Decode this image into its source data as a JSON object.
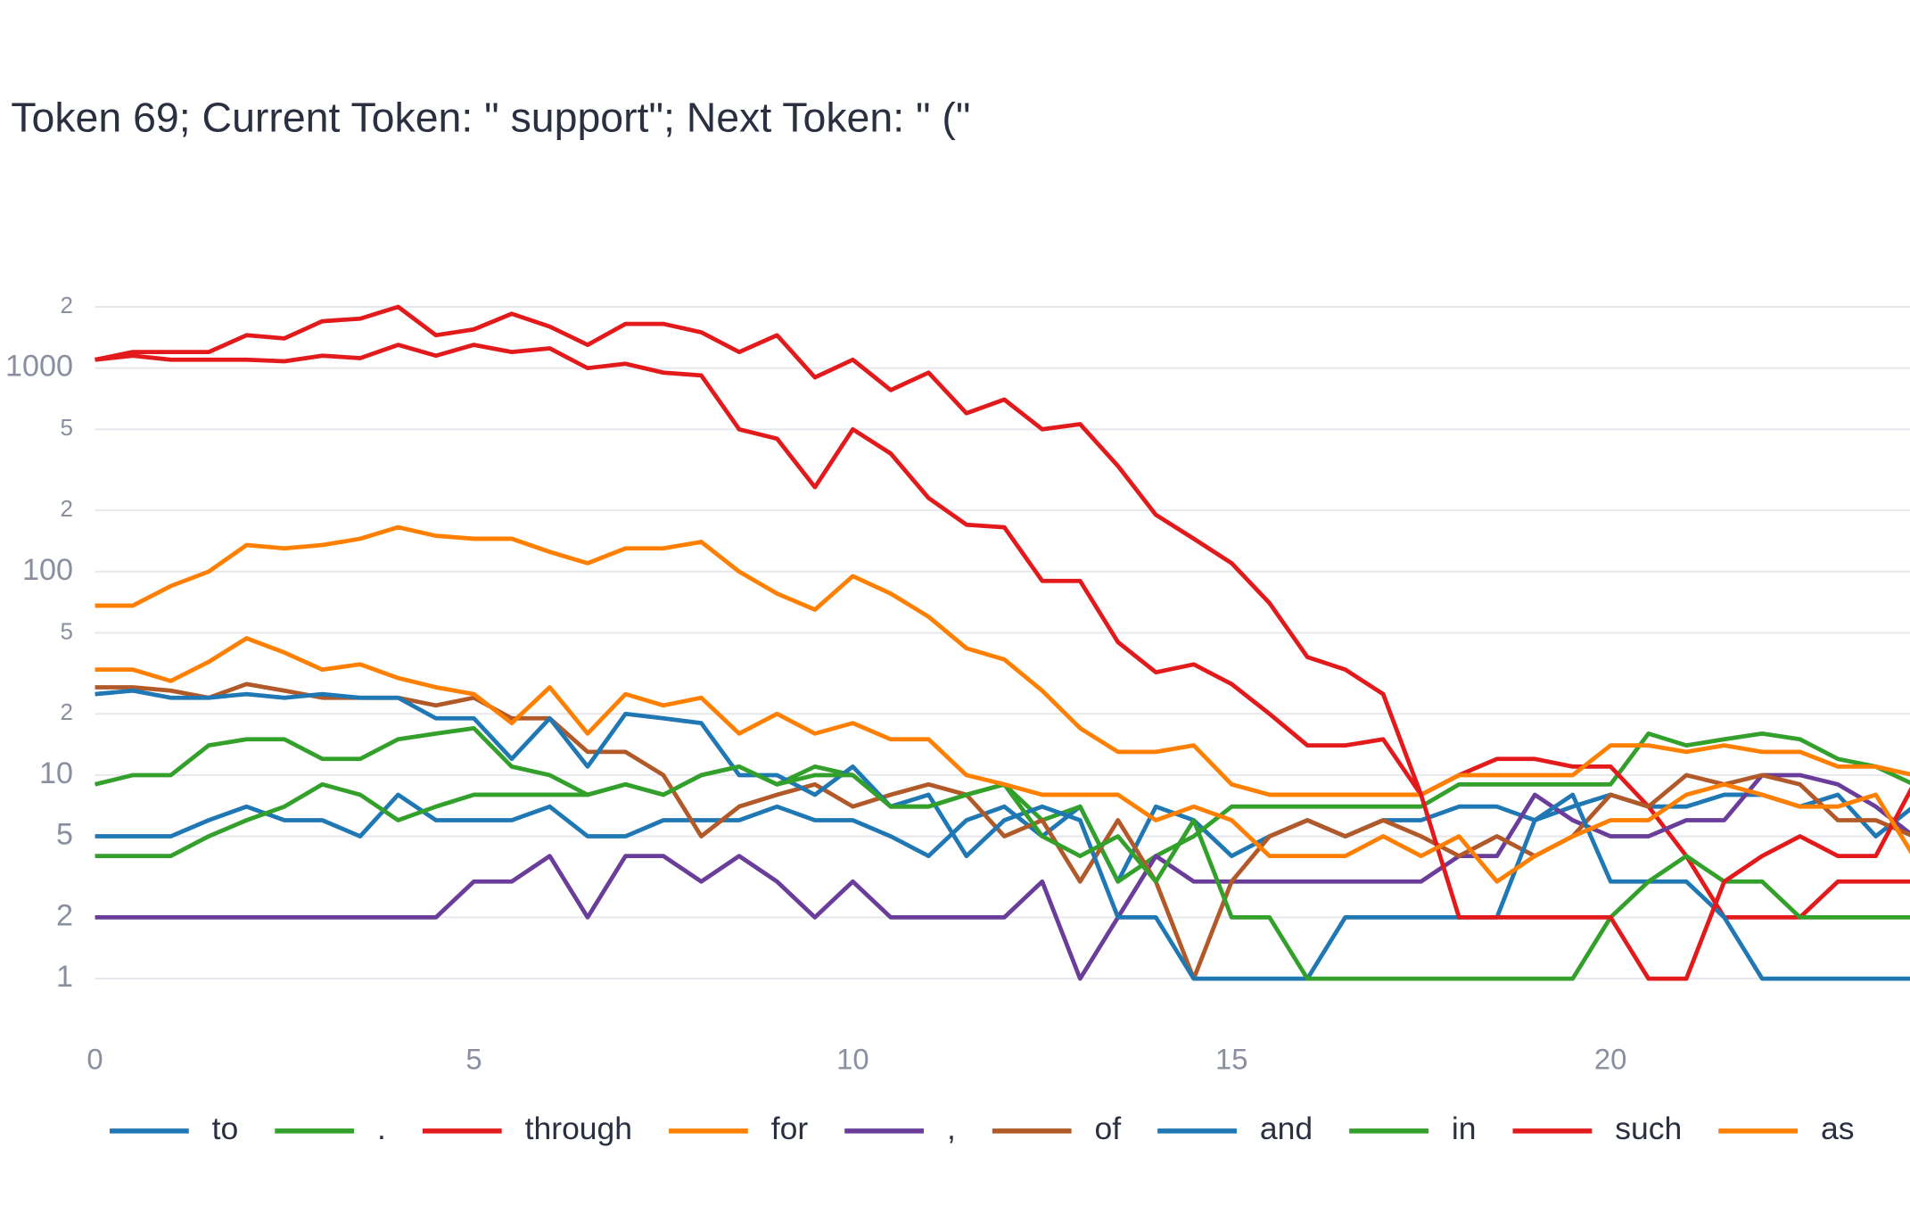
{
  "chart_data": {
    "type": "line",
    "title": "Token 69; Current Token: \" support\"; Next Token: \" (\"",
    "log_y": true,
    "grid": true,
    "legend": "bottom",
    "x": [
      0,
      0.5,
      1,
      1.5,
      2,
      2.5,
      3,
      3.5,
      4,
      4.5,
      5,
      5.5,
      6,
      6.5,
      7,
      7.5,
      8,
      8.5,
      9,
      9.5,
      10,
      10.5,
      11,
      11.5,
      12,
      12.5,
      13,
      13.5,
      14,
      14.5,
      15,
      15.5,
      16,
      16.5,
      17,
      17.5,
      18,
      18.5,
      19,
      19.5,
      20,
      20.5,
      21,
      21.5,
      22,
      22.5,
      23,
      23.5,
      24
    ],
    "xlim": [
      0,
      24
    ],
    "xticks": [
      0,
      5,
      10,
      15,
      20
    ],
    "ylim": [
      0.6,
      3000
    ],
    "yticks": [
      1,
      2,
      5,
      10,
      {
        "value": 20,
        "label": "2"
      },
      {
        "value": 50,
        "label": "5"
      },
      100,
      {
        "value": 200,
        "label": "2"
      },
      {
        "value": 500,
        "label": "5"
      },
      1000,
      {
        "value": 2000,
        "label": "2"
      }
    ],
    "series": [
      {
        "name": "to",
        "color": "#1f78b4",
        "values": [
          5,
          5,
          5,
          6,
          7,
          6,
          6,
          5,
          8,
          6,
          6,
          6,
          7,
          5,
          5,
          6,
          6,
          6,
          7,
          6,
          6,
          5,
          4,
          6,
          7,
          5,
          7,
          3,
          7,
          6,
          4,
          5,
          6,
          5,
          6,
          6,
          7,
          7,
          6,
          7,
          8,
          7,
          7,
          8,
          8,
          7,
          8,
          5,
          7
        ]
      },
      {
        "name": ".",
        "color": "#33a02c",
        "values": [
          9,
          10,
          10,
          14,
          15,
          15,
          12,
          12,
          15,
          16,
          17,
          11,
          10,
          8,
          9,
          8,
          10,
          11,
          9,
          11,
          10,
          7,
          7,
          8,
          9,
          6,
          7,
          3,
          4,
          5,
          7,
          7,
          7,
          7,
          7,
          7,
          9,
          9,
          9,
          9,
          9,
          16,
          14,
          15,
          16,
          15,
          12,
          11,
          9
        ]
      },
      {
        "name": "through",
        "color": "#e31a1c",
        "values": [
          1100,
          1150,
          1100,
          1100,
          1100,
          1080,
          1150,
          1120,
          1300,
          1150,
          1300,
          1200,
          1250,
          1000,
          1050,
          950,
          920,
          500,
          450,
          260,
          500,
          380,
          230,
          170,
          165,
          90,
          90,
          45,
          32,
          35,
          28,
          20,
          14,
          14,
          15,
          8,
          10,
          12,
          12,
          11,
          11,
          7,
          4,
          2,
          2,
          2,
          3,
          3,
          3
        ]
      },
      {
        "name": "for",
        "color": "#ff7f00",
        "values": [
          68,
          68,
          85,
          100,
          135,
          130,
          135,
          145,
          165,
          150,
          145,
          145,
          125,
          110,
          130,
          130,
          140,
          100,
          78,
          65,
          95,
          78,
          60,
          42,
          37,
          26,
          17,
          13,
          13,
          14,
          9,
          8,
          8,
          8,
          8,
          8,
          10,
          10,
          10,
          10,
          14,
          14,
          13,
          14,
          13,
          13,
          11,
          11,
          10
        ]
      },
      {
        "name": ",",
        "color": "#6a3d9a",
        "values": [
          2,
          2,
          2,
          2,
          2,
          2,
          2,
          2,
          2,
          2,
          3,
          3,
          4,
          2,
          4,
          4,
          3,
          4,
          3,
          2,
          3,
          2,
          2,
          2,
          2,
          3,
          1,
          2,
          4,
          3,
          3,
          3,
          3,
          3,
          3,
          3,
          4,
          4,
          8,
          6,
          5,
          5,
          6,
          6,
          10,
          10,
          9,
          7,
          5
        ]
      },
      {
        "name": "of",
        "color": "#b15928",
        "values": [
          27,
          27,
          26,
          24,
          28,
          26,
          24,
          24,
          24,
          22,
          24,
          19,
          19,
          13,
          13,
          10,
          5,
          7,
          8,
          9,
          7,
          8,
          9,
          8,
          5,
          6,
          3,
          6,
          3,
          1,
          3,
          5,
          6,
          5,
          6,
          5,
          4,
          5,
          4,
          5,
          8,
          7,
          10,
          9,
          10,
          9,
          6,
          6,
          5
        ]
      },
      {
        "name": "and",
        "color": "#1f78b4",
        "values": [
          25,
          26,
          24,
          24,
          25,
          24,
          25,
          24,
          24,
          19,
          19,
          12,
          19,
          11,
          20,
          19,
          18,
          10,
          10,
          8,
          11,
          7,
          8,
          4,
          6,
          7,
          6,
          2,
          2,
          1,
          1,
          1,
          1,
          2,
          2,
          2,
          2,
          2,
          6,
          8,
          3,
          3,
          3,
          2,
          1,
          1,
          1,
          1,
          1
        ]
      },
      {
        "name": "in",
        "color": "#33a02c",
        "values": [
          4,
          4,
          4,
          5,
          6,
          7,
          9,
          8,
          6,
          7,
          8,
          8,
          8,
          8,
          9,
          8,
          10,
          11,
          9,
          10,
          10,
          7,
          7,
          8,
          9,
          5,
          4,
          5,
          3,
          6,
          2,
          2,
          1,
          1,
          1,
          1,
          1,
          1,
          1,
          1,
          2,
          3,
          4,
          3,
          3,
          2,
          2,
          2,
          2
        ]
      },
      {
        "name": "such",
        "color": "#e31a1c",
        "values": [
          1100,
          1200,
          1200,
          1200,
          1450,
          1400,
          1700,
          1750,
          2000,
          1450,
          1550,
          1850,
          1600,
          1300,
          1650,
          1650,
          1500,
          1200,
          1450,
          900,
          1100,
          780,
          950,
          600,
          700,
          500,
          530,
          330,
          190,
          145,
          110,
          70,
          38,
          33,
          25,
          8,
          2,
          2,
          2,
          2,
          2,
          1,
          1,
          3,
          4,
          5,
          4,
          4,
          9
        ]
      },
      {
        "name": "as",
        "color": "#ff7f00",
        "values": [
          33,
          33,
          29,
          36,
          47,
          40,
          33,
          35,
          30,
          27,
          25,
          18,
          27,
          16,
          25,
          22,
          24,
          16,
          20,
          16,
          18,
          15,
          15,
          10,
          9,
          8,
          8,
          8,
          6,
          7,
          6,
          4,
          4,
          4,
          5,
          4,
          5,
          3,
          4,
          5,
          6,
          6,
          8,
          9,
          8,
          7,
          7,
          8,
          4
        ]
      }
    ]
  }
}
